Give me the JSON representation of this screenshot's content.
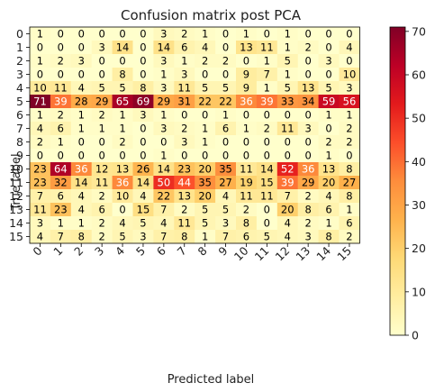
{
  "chart_data": {
    "type": "heatmap",
    "title": "Confusion matrix post PCA",
    "xlabel": "Predicted label",
    "ylabel": "True label",
    "x_ticks": [
      "0",
      "1",
      "2",
      "3",
      "4",
      "5",
      "6",
      "7",
      "8",
      "9",
      "10",
      "11",
      "12",
      "13",
      "14",
      "15"
    ],
    "y_ticks": [
      "0",
      "1",
      "2",
      "3",
      "4",
      "5",
      "6",
      "7",
      "8",
      "9",
      "10",
      "11",
      "12",
      "13",
      "14",
      "15"
    ],
    "colorbar": {
      "ticks": [
        0,
        10,
        20,
        30,
        40,
        50,
        60,
        70
      ],
      "min": 0,
      "max": 71,
      "colormap": "YlOrRd"
    },
    "matrix": [
      [
        1,
        0,
        0,
        0,
        0,
        0,
        3,
        2,
        1,
        0,
        1,
        0,
        1,
        0,
        0,
        0
      ],
      [
        0,
        0,
        0,
        3,
        14,
        0,
        14,
        6,
        4,
        0,
        13,
        11,
        1,
        2,
        0,
        4
      ],
      [
        1,
        2,
        3,
        0,
        0,
        0,
        3,
        1,
        2,
        2,
        0,
        1,
        5,
        0,
        3,
        0
      ],
      [
        0,
        0,
        0,
        0,
        8,
        0,
        1,
        3,
        0,
        0,
        9,
        7,
        1,
        0,
        0,
        10
      ],
      [
        10,
        11,
        4,
        5,
        5,
        8,
        3,
        11,
        5,
        5,
        9,
        1,
        5,
        13,
        5,
        3
      ],
      [
        71,
        39,
        28,
        29,
        65,
        69,
        29,
        31,
        22,
        22,
        36,
        39,
        33,
        34,
        59,
        56
      ],
      [
        1,
        2,
        1,
        2,
        1,
        3,
        1,
        0,
        0,
        1,
        0,
        0,
        0,
        0,
        1,
        1
      ],
      [
        4,
        6,
        1,
        1,
        1,
        0,
        3,
        2,
        1,
        6,
        1,
        2,
        11,
        3,
        0,
        2
      ],
      [
        2,
        1,
        0,
        0,
        2,
        0,
        0,
        3,
        1,
        0,
        0,
        0,
        0,
        0,
        2,
        2
      ],
      [
        0,
        0,
        0,
        0,
        0,
        0,
        1,
        0,
        0,
        0,
        0,
        0,
        0,
        0,
        1,
        0
      ],
      [
        23,
        64,
        36,
        12,
        13,
        26,
        14,
        23,
        20,
        35,
        11,
        14,
        52,
        36,
        13,
        8
      ],
      [
        23,
        32,
        14,
        11,
        36,
        14,
        50,
        44,
        35,
        27,
        19,
        15,
        39,
        29,
        20,
        27
      ],
      [
        7,
        6,
        4,
        2,
        10,
        4,
        22,
        13,
        20,
        4,
        11,
        11,
        7,
        2,
        4,
        8
      ],
      [
        11,
        23,
        4,
        6,
        0,
        15,
        7,
        2,
        5,
        5,
        2,
        0,
        20,
        8,
        6,
        1
      ],
      [
        3,
        1,
        1,
        2,
        4,
        5,
        4,
        11,
        5,
        3,
        8,
        0,
        4,
        2,
        1,
        6
      ],
      [
        4,
        7,
        8,
        2,
        5,
        3,
        7,
        8,
        1,
        7,
        6,
        5,
        4,
        3,
        8,
        2
      ]
    ]
  }
}
